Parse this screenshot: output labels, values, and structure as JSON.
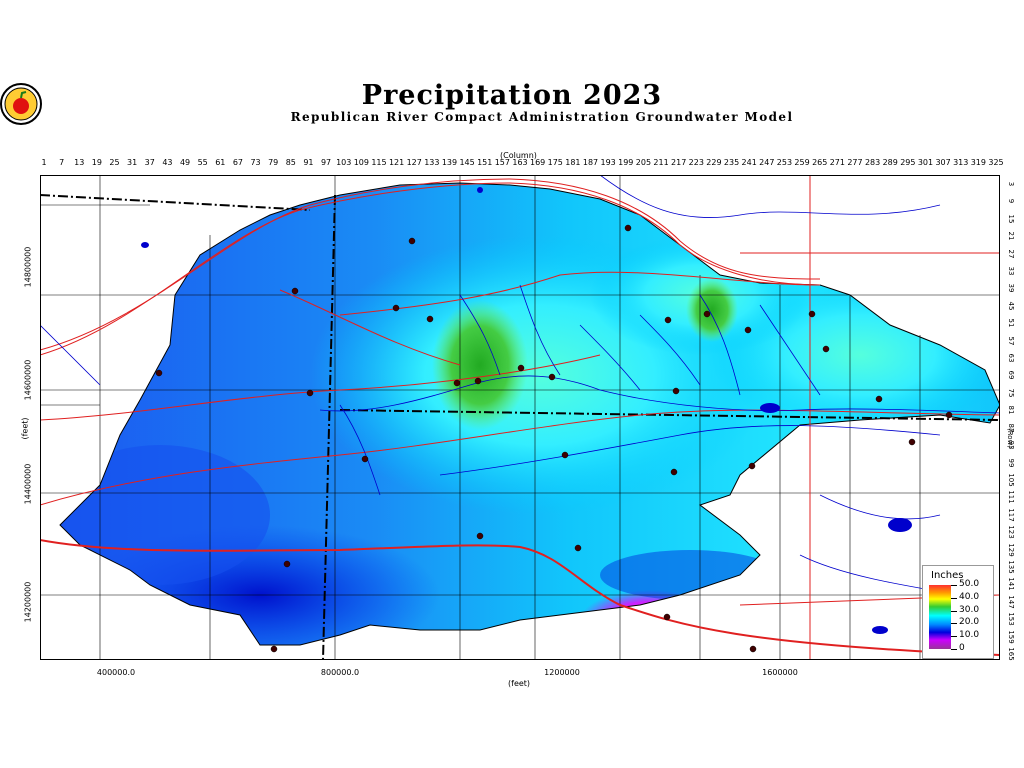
{
  "title": "Precipitation  2023",
  "subtitle": "Republican  River  Compact  Administration  Groundwater  Model",
  "column_axis": {
    "title": "(Column)",
    "ticks": [
      "1",
      "7",
      "13",
      "19",
      "25",
      "31",
      "37",
      "43",
      "49",
      "55",
      "61",
      "67",
      "73",
      "79",
      "85",
      "91",
      "97",
      "103",
      "109",
      "115",
      "121",
      "127",
      "133",
      "139",
      "145",
      "151",
      "157",
      "163",
      "169",
      "175",
      "181",
      "187",
      "193",
      "199",
      "205",
      "211",
      "217",
      "223",
      "229",
      "235",
      "241",
      "247",
      "253",
      "259",
      "265",
      "271",
      "277",
      "283",
      "289",
      "295",
      "301",
      "307",
      "313",
      "319",
      "325"
    ]
  },
  "row_axis": {
    "title": "(Row)",
    "ticks": [
      "3",
      "9",
      "15",
      "21",
      "27",
      "33",
      "39",
      "45",
      "51",
      "57",
      "63",
      "69",
      "75",
      "81",
      "87",
      "93",
      "99",
      "105",
      "111",
      "117",
      "123",
      "129",
      "135",
      "141",
      "147",
      "153",
      "159",
      "165"
    ]
  },
  "y_axis": {
    "title": "(feet)",
    "ticks": [
      "14800000",
      "14600000",
      "14400000",
      "14200000"
    ]
  },
  "x_axis": {
    "title": "(feet)",
    "ticks": [
      "400000.0",
      "800000.0",
      "1200000",
      "1600000"
    ]
  },
  "legend": {
    "title": "Inches",
    "labels": [
      "50.0",
      "40.0",
      "30.0",
      "20.0",
      "10.0",
      "0"
    ],
    "colors": [
      "#ff3030",
      "#ffff00",
      "#33cc33",
      "#00ffff",
      "#0000dd",
      "#993399"
    ]
  },
  "colors": {
    "low_precip": "#0000dd",
    "mid_precip": "#0088ff",
    "high_precip": "#00ffff",
    "peak_precip": "#33cc33",
    "min_precip": "#cc00ff",
    "roads": "#e02020",
    "rivers": "#0000cc",
    "state_border": "#000000"
  },
  "logo": {
    "icon": "apple-seal-icon"
  }
}
